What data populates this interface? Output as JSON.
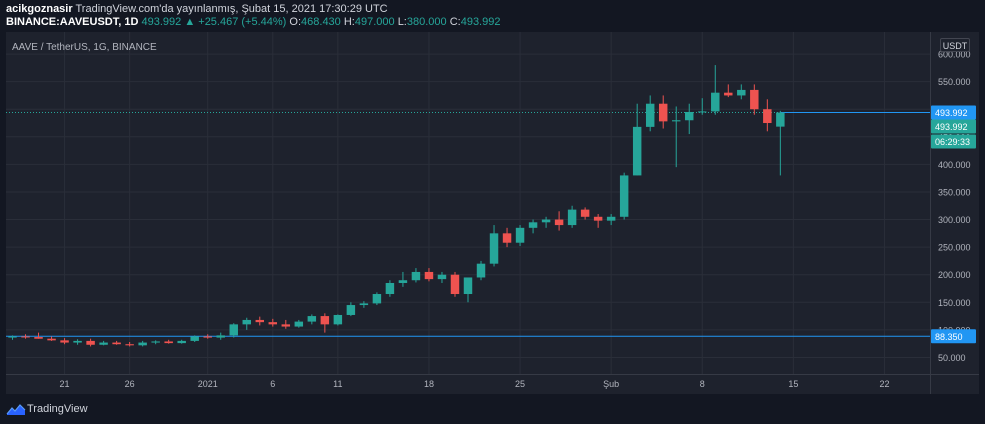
{
  "header": {
    "author": "acikgoznasir",
    "published_text": "TradingView.com'da yayınlanmış, Şubat 15, 2021 17:30:29 UTC",
    "symbol": "BINANCE:AAVEUSDT, 1D",
    "last_price": "493.992",
    "change": "+25.467 (+5.44%)",
    "o_label": "O:",
    "o_value": "468.430",
    "h_label": "H:",
    "h_value": "497.000",
    "l_label": "L:",
    "l_value": "380.000",
    "c_label": "C:",
    "c_value": "493.992"
  },
  "chart_title": "AAVE / TetherUS, 1G, BINANCE",
  "currency": "USDT",
  "price_labels": {
    "last_price": "493.992",
    "close_price": "493.992",
    "countdown": "06:29:33",
    "hline": "88.350"
  },
  "footer": {
    "brand": "TradingView"
  },
  "colors": {
    "up": "#26a69a",
    "down": "#ef5350",
    "hline": "#2196f3",
    "bg": "#1e222d",
    "text": "#b2b5be"
  },
  "chart_data": {
    "type": "candlestick",
    "ylim": [
      20,
      640
    ],
    "y_ticks": [
      50,
      100,
      150,
      200,
      250,
      300,
      350,
      400,
      450,
      500,
      550,
      600
    ],
    "y_tick_labels": [
      "50.000",
      "100.000",
      "150.000",
      "200.000",
      "250.000",
      "300.000",
      "350.000",
      "400.000",
      "450.000",
      "500.000",
      "550.000",
      "600.000"
    ],
    "x_ticks": [
      {
        "index": 4,
        "label": "21"
      },
      {
        "index": 9,
        "label": "26"
      },
      {
        "index": 15,
        "label": "2021"
      },
      {
        "index": 20,
        "label": "6"
      },
      {
        "index": 25,
        "label": "11"
      },
      {
        "index": 32,
        "label": "18"
      },
      {
        "index": 39,
        "label": "25"
      },
      {
        "index": 46,
        "label": "Şub"
      },
      {
        "index": 53,
        "label": "8"
      },
      {
        "index": 60,
        "label": "15"
      },
      {
        "index": 67,
        "label": "22"
      }
    ],
    "x_slots": 71,
    "horizontal_line": 88.35,
    "last_close": 493.992,
    "candles": [
      {
        "o": 86,
        "h": 90,
        "l": 82,
        "c": 88
      },
      {
        "o": 88,
        "h": 92,
        "l": 84,
        "c": 87
      },
      {
        "o": 87,
        "h": 95,
        "l": 84,
        "c": 84
      },
      {
        "o": 84,
        "h": 88,
        "l": 80,
        "c": 81
      },
      {
        "o": 81,
        "h": 85,
        "l": 74,
        "c": 77
      },
      {
        "o": 77,
        "h": 83,
        "l": 73,
        "c": 80
      },
      {
        "o": 80,
        "h": 84,
        "l": 70,
        "c": 73
      },
      {
        "o": 73,
        "h": 80,
        "l": 72,
        "c": 77
      },
      {
        "o": 77,
        "h": 80,
        "l": 73,
        "c": 74
      },
      {
        "o": 74,
        "h": 78,
        "l": 70,
        "c": 72
      },
      {
        "o": 72,
        "h": 80,
        "l": 70,
        "c": 77
      },
      {
        "o": 77,
        "h": 81,
        "l": 74,
        "c": 79
      },
      {
        "o": 79,
        "h": 82,
        "l": 75,
        "c": 76
      },
      {
        "o": 76,
        "h": 82,
        "l": 75,
        "c": 80
      },
      {
        "o": 80,
        "h": 90,
        "l": 78,
        "c": 88
      },
      {
        "o": 88,
        "h": 92,
        "l": 84,
        "c": 86
      },
      {
        "o": 86,
        "h": 95,
        "l": 82,
        "c": 90
      },
      {
        "o": 90,
        "h": 112,
        "l": 86,
        "c": 110
      },
      {
        "o": 110,
        "h": 122,
        "l": 100,
        "c": 118
      },
      {
        "o": 118,
        "h": 124,
        "l": 108,
        "c": 114
      },
      {
        "o": 114,
        "h": 120,
        "l": 106,
        "c": 110
      },
      {
        "o": 110,
        "h": 118,
        "l": 102,
        "c": 106
      },
      {
        "o": 106,
        "h": 118,
        "l": 104,
        "c": 115
      },
      {
        "o": 115,
        "h": 128,
        "l": 110,
        "c": 125
      },
      {
        "o": 125,
        "h": 130,
        "l": 95,
        "c": 110
      },
      {
        "o": 110,
        "h": 128,
        "l": 108,
        "c": 127
      },
      {
        "o": 127,
        "h": 150,
        "l": 125,
        "c": 145
      },
      {
        "o": 145,
        "h": 152,
        "l": 140,
        "c": 148
      },
      {
        "o": 148,
        "h": 168,
        "l": 145,
        "c": 165
      },
      {
        "o": 165,
        "h": 190,
        "l": 160,
        "c": 185
      },
      {
        "o": 185,
        "h": 205,
        "l": 178,
        "c": 190
      },
      {
        "o": 190,
        "h": 212,
        "l": 186,
        "c": 205
      },
      {
        "o": 205,
        "h": 212,
        "l": 188,
        "c": 192
      },
      {
        "o": 192,
        "h": 205,
        "l": 185,
        "c": 200
      },
      {
        "o": 200,
        "h": 205,
        "l": 160,
        "c": 165
      },
      {
        "o": 165,
        "h": 192,
        "l": 150,
        "c": 195
      },
      {
        "o": 195,
        "h": 225,
        "l": 190,
        "c": 220
      },
      {
        "o": 220,
        "h": 290,
        "l": 215,
        "c": 275
      },
      {
        "o": 275,
        "h": 285,
        "l": 250,
        "c": 258
      },
      {
        "o": 258,
        "h": 290,
        "l": 252,
        "c": 285
      },
      {
        "o": 285,
        "h": 300,
        "l": 275,
        "c": 295
      },
      {
        "o": 295,
        "h": 305,
        "l": 285,
        "c": 300
      },
      {
        "o": 300,
        "h": 315,
        "l": 280,
        "c": 290
      },
      {
        "o": 290,
        "h": 325,
        "l": 285,
        "c": 318
      },
      {
        "o": 318,
        "h": 322,
        "l": 300,
        "c": 305
      },
      {
        "o": 305,
        "h": 310,
        "l": 285,
        "c": 298
      },
      {
        "o": 298,
        "h": 310,
        "l": 290,
        "c": 305
      },
      {
        "o": 305,
        "h": 385,
        "l": 300,
        "c": 380
      },
      {
        "o": 380,
        "h": 510,
        "l": 380,
        "c": 468
      },
      {
        "o": 468,
        "h": 525,
        "l": 460,
        "c": 510
      },
      {
        "o": 510,
        "h": 525,
        "l": 465,
        "c": 478
      },
      {
        "o": 478,
        "h": 505,
        "l": 395,
        "c": 480
      },
      {
        "o": 480,
        "h": 510,
        "l": 455,
        "c": 495
      },
      {
        "o": 495,
        "h": 520,
        "l": 490,
        "c": 496
      },
      {
        "o": 496,
        "h": 580,
        "l": 490,
        "c": 530
      },
      {
        "o": 530,
        "h": 545,
        "l": 522,
        "c": 525
      },
      {
        "o": 525,
        "h": 545,
        "l": 518,
        "c": 535
      },
      {
        "o": 535,
        "h": 545,
        "l": 490,
        "c": 500
      },
      {
        "o": 500,
        "h": 518,
        "l": 460,
        "c": 475
      },
      {
        "o": 468.43,
        "h": 497,
        "l": 380,
        "c": 493.992
      }
    ]
  }
}
